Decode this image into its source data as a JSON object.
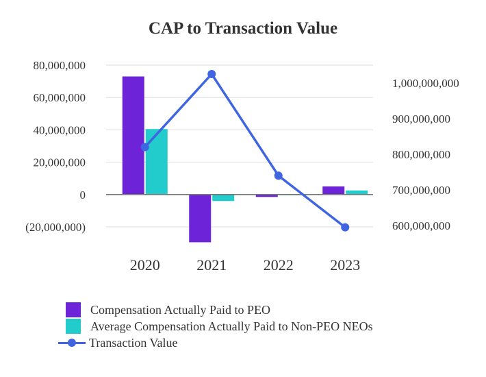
{
  "chart_data": {
    "type": "bar+line",
    "title": "CAP to Transaction Value",
    "categories": [
      "2020",
      "2021",
      "2022",
      "2023"
    ],
    "series": [
      {
        "name": "Compensation Actually Paid to PEO",
        "type": "bar",
        "axis": "left",
        "color": "#6d24d9",
        "values": [
          73000000,
          -29500000,
          -1500000,
          5000000
        ]
      },
      {
        "name": "Average Compensation Actually Paid to Non-PEO NEOs",
        "type": "bar",
        "axis": "left",
        "color": "#22cccc",
        "values": [
          40500000,
          -4000000,
          -300000,
          2500000
        ]
      },
      {
        "name": "Transaction Value",
        "type": "line",
        "axis": "right",
        "color": "#3f65e0",
        "values": [
          820000000,
          1025000000,
          740000000,
          595000000
        ]
      }
    ],
    "left_axis": {
      "range": [
        -20000000,
        80000000
      ],
      "ticks": [
        80000000,
        60000000,
        40000000,
        20000000,
        0,
        -20000000
      ],
      "tick_labels": [
        "80,000,000",
        "60,000,000",
        "40,000,000",
        "20,000,000",
        "0",
        "(20,000,000)"
      ]
    },
    "right_axis": {
      "ticks": [
        1000000000,
        900000000,
        800000000,
        700000000,
        600000000
      ],
      "tick_labels": [
        "1,000,000,000",
        "900,000,000",
        "800,000,000",
        "700,000,000",
        "600,000,000"
      ]
    },
    "grid": true,
    "legend_position": "bottom-left"
  }
}
